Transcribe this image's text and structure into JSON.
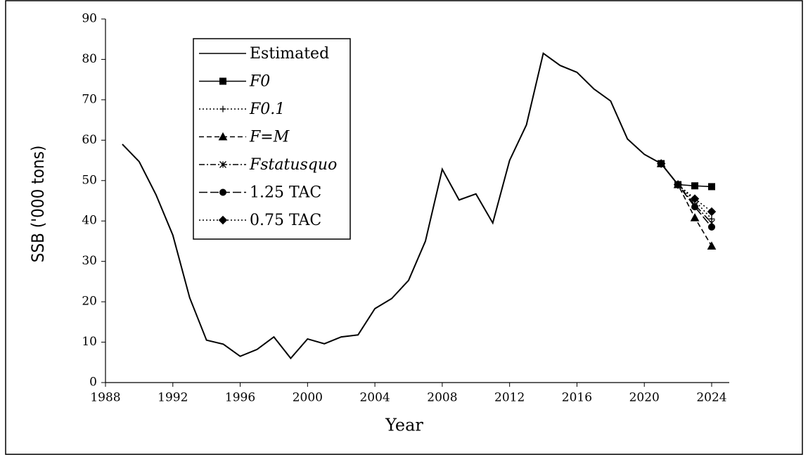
{
  "chart_data": {
    "type": "line",
    "xlabel": "Year",
    "ylabel": "SSB ('000 tons)",
    "x": [
      1989,
      1990,
      1991,
      1992,
      1993,
      1994,
      1995,
      1996,
      1997,
      1998,
      1999,
      2000,
      2001,
      2002,
      2003,
      2004,
      2005,
      2006,
      2007,
      2008,
      2009,
      2010,
      2011,
      2012,
      2013,
      2014,
      2015,
      2016,
      2017,
      2018,
      2019,
      2020,
      2021,
      2022,
      2023,
      2024
    ],
    "series": [
      {
        "name": "Estimated",
        "color": "#000000",
        "marker": "none",
        "dash": "solid",
        "values": [
          59,
          54.7,
          46.5,
          36.5,
          21,
          10.5,
          9.5,
          6.5,
          8.2,
          11.3,
          6,
          10.8,
          9.6,
          11.3,
          11.8,
          18.3,
          20.8,
          25.3,
          35,
          52.8,
          45.2,
          46.7,
          39.5,
          55,
          63.8,
          81.5,
          78.5,
          76.8,
          72.7,
          69.7,
          60.3,
          56.5,
          54.2,
          49,
          null,
          null
        ]
      },
      {
        "name": "F0",
        "color": "#000000",
        "marker": "square",
        "dash": "solid",
        "values": [
          null,
          null,
          null,
          null,
          null,
          null,
          null,
          null,
          null,
          null,
          null,
          null,
          null,
          null,
          null,
          null,
          null,
          null,
          null,
          null,
          null,
          null,
          null,
          null,
          null,
          null,
          null,
          null,
          null,
          null,
          null,
          null,
          54.2,
          49,
          48.7,
          48.5
        ]
      },
      {
        "name": "F0.1",
        "color": "#000000",
        "marker": "plus",
        "dash": "dotted",
        "values": [
          null,
          null,
          null,
          null,
          null,
          null,
          null,
          null,
          null,
          null,
          null,
          null,
          null,
          null,
          null,
          null,
          null,
          null,
          null,
          null,
          null,
          null,
          null,
          null,
          null,
          null,
          null,
          null,
          null,
          null,
          null,
          null,
          54.2,
          49,
          45,
          40.5
        ]
      },
      {
        "name": "F=M",
        "color": "#000000",
        "marker": "triangle",
        "dash": "dashed",
        "values": [
          null,
          null,
          null,
          null,
          null,
          null,
          null,
          null,
          null,
          null,
          null,
          null,
          null,
          null,
          null,
          null,
          null,
          null,
          null,
          null,
          null,
          null,
          null,
          null,
          null,
          null,
          null,
          null,
          null,
          null,
          null,
          null,
          54.2,
          49,
          40.8,
          33.8
        ]
      },
      {
        "name": "Fstatusquo",
        "color": "#000000",
        "marker": "asterisk",
        "dash": "dashdot",
        "values": [
          null,
          null,
          null,
          null,
          null,
          null,
          null,
          null,
          null,
          null,
          null,
          null,
          null,
          null,
          null,
          null,
          null,
          null,
          null,
          null,
          null,
          null,
          null,
          null,
          null,
          null,
          null,
          null,
          null,
          null,
          null,
          null,
          54.2,
          49,
          44,
          39.5
        ]
      },
      {
        "name": "1.25 TAC",
        "color": "#000000",
        "marker": "circle",
        "dash": "longdash",
        "values": [
          null,
          null,
          null,
          null,
          null,
          null,
          null,
          null,
          null,
          null,
          null,
          null,
          null,
          null,
          null,
          null,
          null,
          null,
          null,
          null,
          null,
          null,
          null,
          null,
          null,
          null,
          null,
          null,
          null,
          null,
          null,
          null,
          54.2,
          49,
          43.5,
          38.5
        ]
      },
      {
        "name": "0.75 TAC",
        "color": "#000000",
        "marker": "diamond",
        "dash": "dotted",
        "values": [
          null,
          null,
          null,
          null,
          null,
          null,
          null,
          null,
          null,
          null,
          null,
          null,
          null,
          null,
          null,
          null,
          null,
          null,
          null,
          null,
          null,
          null,
          null,
          null,
          null,
          null,
          null,
          null,
          null,
          null,
          null,
          null,
          54.2,
          49,
          45.5,
          42.3
        ]
      }
    ],
    "xlim": [
      1988,
      2024
    ],
    "xticks": [
      1988,
      1992,
      1996,
      2000,
      2004,
      2008,
      2012,
      2016,
      2020,
      2024
    ],
    "ylim": [
      0,
      90
    ],
    "yticks": [
      0,
      10,
      20,
      30,
      40,
      50,
      60,
      70,
      80,
      90
    ],
    "grid": false,
    "legend": "upper left"
  }
}
